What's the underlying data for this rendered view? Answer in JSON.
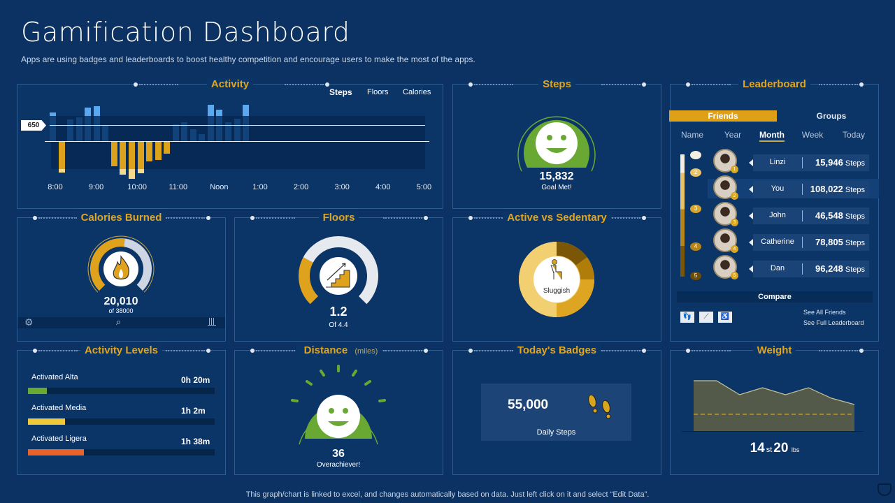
{
  "header": {
    "title": "Gamification Dashboard",
    "subtitle": "Apps are using badges and leaderboards to boost healthy competition and encourage users to make the most of the apps."
  },
  "activity": {
    "title": "Activity",
    "tabs": [
      "Steps",
      "Floors",
      "Calories"
    ],
    "active_tab": "Steps",
    "reference_label": "650",
    "chart_data": {
      "type": "bar",
      "reference_line": 650,
      "x_ticks": [
        "8:00",
        "9:00",
        "10:00",
        "11:00",
        "Noon",
        "1:00",
        "2:00",
        "3:00",
        "4:00",
        "5:00"
      ],
      "values": [
        1160,
        -1270,
        880,
        960,
        1360,
        1410,
        620,
        -1020,
        -1360,
        -1530,
        -1300,
        -820,
        -760,
        -510,
        680,
        760,
        480,
        280,
        1470,
        1270,
        760,
        900,
        1470
      ],
      "colors": {
        "positive": "#5aa8f0",
        "negative": "#dca21c"
      }
    }
  },
  "steps": {
    "title": "Steps",
    "value": "15,832",
    "caption": "Goal Met!",
    "icon": "smiley-icon"
  },
  "leaderboard": {
    "title": "Leaderboard",
    "tabs": [
      "Friends",
      "Groups"
    ],
    "active_tab": "Friends",
    "periods": [
      "Name",
      "Year",
      "Month",
      "Week",
      "Today"
    ],
    "active_period": "Month",
    "rows": [
      {
        "rank": "1",
        "name": "Linzi",
        "steps": "15,946",
        "unit": "Steps"
      },
      {
        "rank": "2",
        "name": "You",
        "steps": "108,022",
        "unit": "Steps"
      },
      {
        "rank": "3",
        "name": "John",
        "steps": "46,548",
        "unit": "Steps"
      },
      {
        "rank": "4",
        "name": "Catherine",
        "steps": "78,805",
        "unit": "Steps"
      },
      {
        "rank": "5",
        "name": "Dan",
        "steps": "96,248",
        "unit": "Steps"
      }
    ],
    "compare_label": "Compare",
    "links": [
      "See All Friends",
      "See Full Leaderboard"
    ]
  },
  "calories": {
    "title": "Calories Burned",
    "value": "20,010",
    "caption": "of 38000",
    "progress": 0.527
  },
  "floors": {
    "title": "Floors",
    "value": "1.2",
    "caption": "Of 4.4",
    "progress": 0.27
  },
  "active": {
    "title": "Active vs Sedentary",
    "caption": "Sluggish",
    "segments": [
      0.15,
      0.1,
      0.25,
      0.5
    ],
    "colors": [
      "#7a5606",
      "#b07d0b",
      "#dda521",
      "#f2cf70"
    ]
  },
  "levels": {
    "title": "Activity Levels",
    "items": [
      {
        "label": "Activated Alta",
        "value": "0h 20m",
        "fraction": 0.1,
        "color": "#6aa834"
      },
      {
        "label": "Activated Media",
        "value": "1h 2m",
        "fraction": 0.2,
        "color": "#f0c93a"
      },
      {
        "label": "Activated Ligera",
        "value": "1h 38m",
        "fraction": 0.3,
        "color": "#e8622a"
      }
    ]
  },
  "distance": {
    "title": "Distance",
    "unit": "(miles)",
    "value": "36",
    "caption": "Overachiever!"
  },
  "badges": {
    "title": "Today's Badges",
    "value": "55,000",
    "caption": "Daily Steps"
  },
  "weight": {
    "title": "Weight",
    "stones": "14",
    "st_label": "st",
    "pounds": "20",
    "lbs_label": "lbs",
    "chart_data": {
      "type": "area",
      "values": [
        72,
        72,
        52,
        62,
        52,
        62,
        47,
        38
      ],
      "target": 24
    }
  },
  "footer": "This graph/chart is linked to excel, and changes automatically based on data. Just left click on it and select “Edit Data”."
}
